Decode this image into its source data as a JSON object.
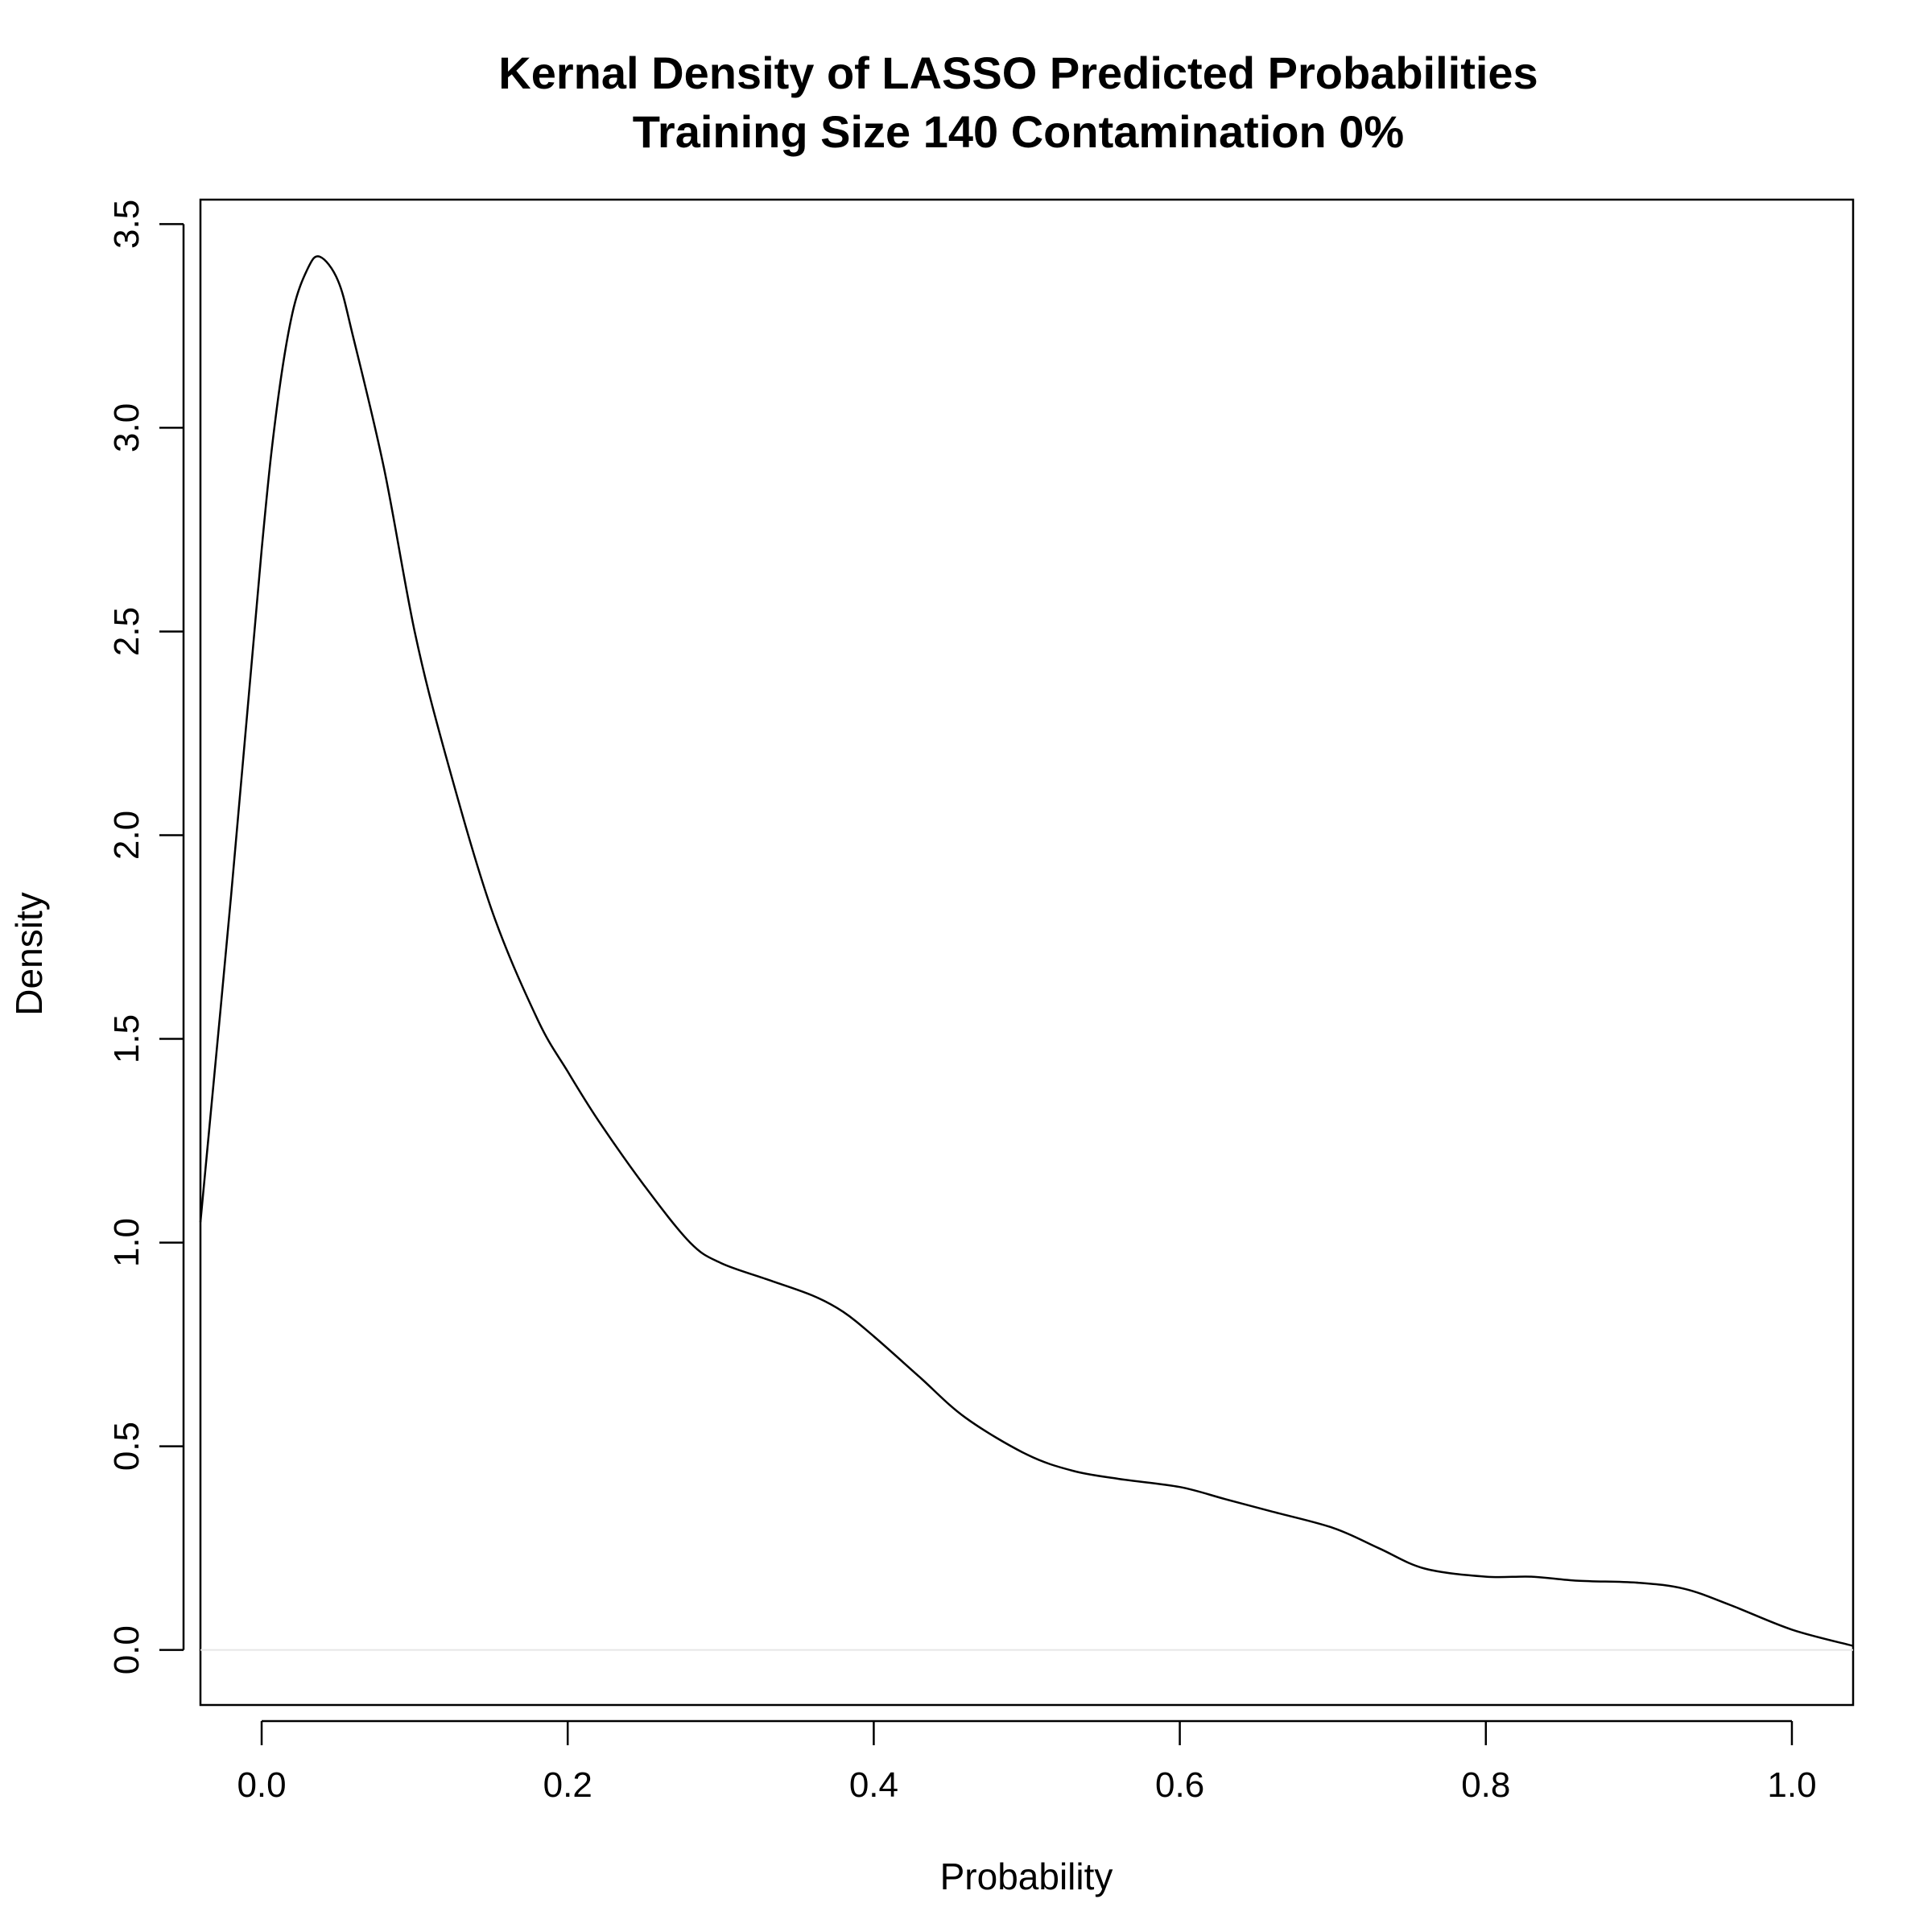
{
  "chart_data": {
    "type": "line",
    "title": "Kernal Density of LASSO Predicted Probabilities",
    "subtitle": "Training Size 140 Contamination 0%",
    "xlabel": "Probability",
    "ylabel": "Density",
    "xlim": [
      -0.04,
      1.04
    ],
    "ylim": [
      -0.135,
      3.56
    ],
    "xticks": [
      0.0,
      0.2,
      0.4,
      0.6,
      0.8,
      1.0
    ],
    "xtick_labels": [
      "0.0",
      "0.2",
      "0.4",
      "0.6",
      "0.8",
      "1.0"
    ],
    "yticks": [
      0.0,
      0.5,
      1.0,
      1.5,
      2.0,
      2.5,
      3.0,
      3.5
    ],
    "ytick_labels": [
      "0.0",
      "0.5",
      "1.0",
      "1.5",
      "2.0",
      "2.5",
      "3.0",
      "3.5"
    ],
    "grid": false,
    "legend": "none",
    "series": [
      {
        "x": [
          -0.04,
          -0.02,
          0.0,
          0.01,
          0.02,
          0.03,
          0.038,
          0.05,
          0.06,
          0.08,
          0.1,
          0.12,
          0.15,
          0.18,
          0.2,
          0.22,
          0.25,
          0.28,
          0.3,
          0.33,
          0.36,
          0.38,
          0.4,
          0.43,
          0.46,
          0.5,
          0.53,
          0.56,
          0.6,
          0.63,
          0.66,
          0.7,
          0.73,
          0.76,
          0.8,
          0.83,
          0.86,
          0.9,
          0.93,
          0.96,
          1.0,
          1.04
        ],
        "y": [
          1.05,
          1.85,
          2.7,
          3.05,
          3.28,
          3.39,
          3.42,
          3.36,
          3.22,
          2.9,
          2.5,
          2.2,
          1.82,
          1.55,
          1.42,
          1.3,
          1.14,
          1.0,
          0.95,
          0.91,
          0.87,
          0.83,
          0.77,
          0.67,
          0.57,
          0.48,
          0.44,
          0.42,
          0.4,
          0.37,
          0.34,
          0.3,
          0.25,
          0.2,
          0.18,
          0.18,
          0.17,
          0.165,
          0.15,
          0.11,
          0.05,
          0.01
        ]
      }
    ]
  }
}
